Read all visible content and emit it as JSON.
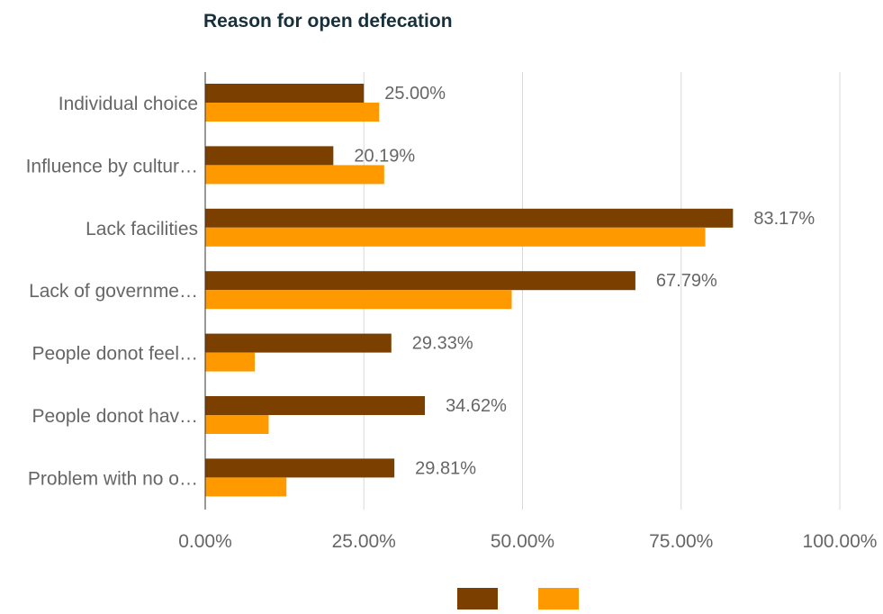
{
  "chart_data": {
    "type": "bar",
    "orientation": "horizontal",
    "title": "Reason for open defecation",
    "xlabel": "",
    "ylabel": "",
    "xlim": [
      0,
      100
    ],
    "x_ticks": [
      "0.00%",
      "25.00%",
      "50.00%",
      "75.00%",
      "100.00%"
    ],
    "x_tick_values": [
      0,
      25,
      50,
      75,
      100
    ],
    "grid": true,
    "legend_position": "bottom",
    "categories": [
      "Individual choice",
      "Influence by cultur…",
      "Lack facilities",
      "Lack of governme…",
      "People donot feel…",
      "People donot hav…",
      "Problem with no o…"
    ],
    "series": [
      {
        "color": "#7b3f00",
        "values": [
          25.0,
          20.19,
          83.17,
          67.79,
          29.33,
          34.62,
          29.81
        ],
        "data_labels": [
          "25.00%",
          "20.19%",
          "83.17%",
          "67.79%",
          "29.33%",
          "34.62%",
          "29.81%"
        ]
      },
      {
        "color": "#ff9900",
        "values": [
          27.4,
          28.2,
          78.8,
          48.3,
          7.8,
          10.0,
          12.8
        ]
      }
    ]
  }
}
